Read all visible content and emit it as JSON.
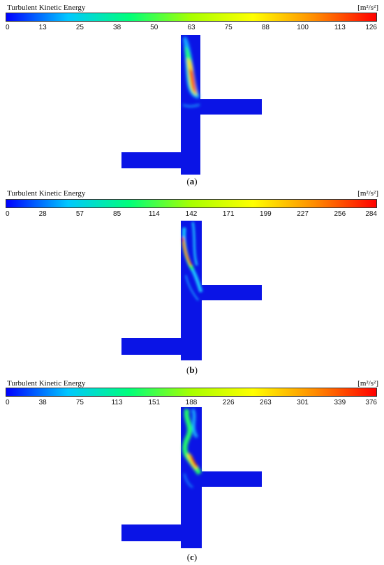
{
  "colorbar_title": "Turbulent Kinetic Energy",
  "units": "[m²/s²]",
  "colormap": [
    "#0000ff",
    "#00c8ff",
    "#00ff7a",
    "#a8ff00",
    "#ffff00",
    "#ff8c00",
    "#ff0000"
  ],
  "panels": [
    {
      "label": "a",
      "ticks": [
        "0",
        "13",
        "25",
        "38",
        "50",
        "63",
        "75",
        "88",
        "100",
        "113",
        "126"
      ]
    },
    {
      "label": "b",
      "ticks": [
        "0",
        "28",
        "57",
        "85",
        "114",
        "142",
        "171",
        "199",
        "227",
        "256",
        "284"
      ]
    },
    {
      "label": "c",
      "ticks": [
        "0",
        "38",
        "75",
        "113",
        "151",
        "188",
        "226",
        "263",
        "301",
        "339",
        "376"
      ]
    }
  ]
}
